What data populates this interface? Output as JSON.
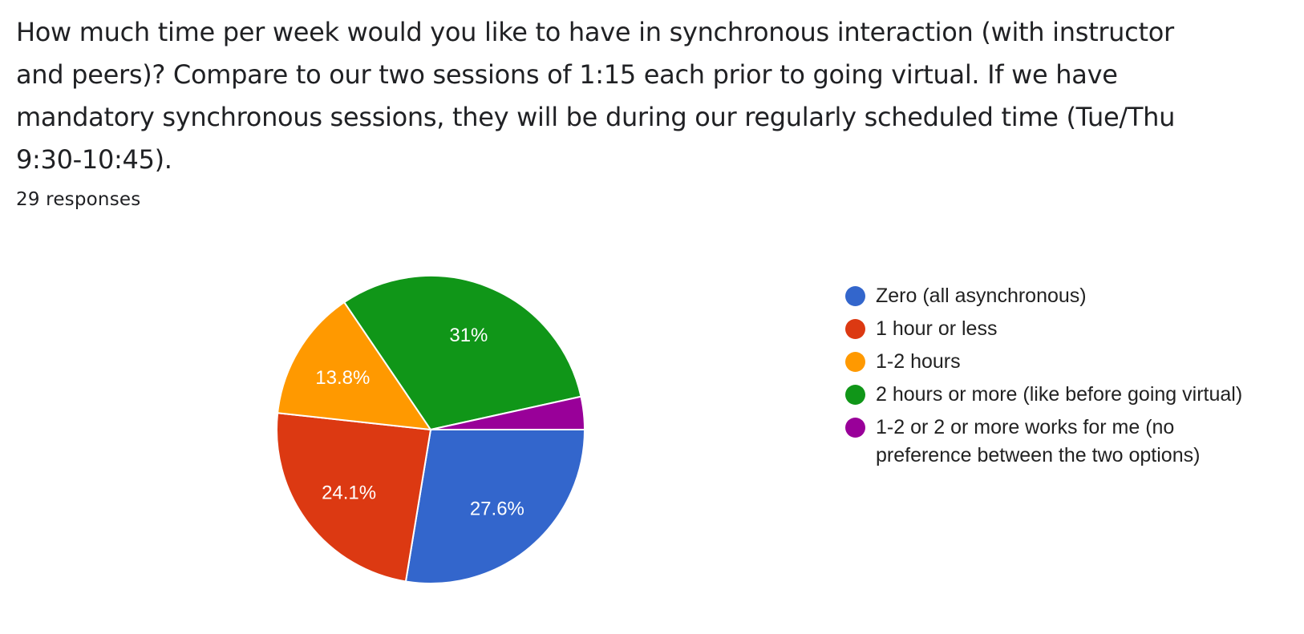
{
  "question": {
    "text": "How much time per week would you like to have in synchronous interaction (with instructor and peers)? Compare to our two sessions of 1:15 each prior to going virtual. If we have mandatory synchronous sessions, they will be during our regularly scheduled time (Tue/Thu 9:30-10:45).",
    "responses": "29 responses"
  },
  "chart_data": {
    "type": "pie",
    "total": 29,
    "categories": [
      "Zero (all asynchronous)",
      "1 hour or less",
      "1-2 hours",
      "2 hours or more (like before going virtual)",
      "1-2 or 2 or more works for me (no preference between the two options)"
    ],
    "values": [
      8,
      7,
      4,
      9,
      1
    ],
    "percent_labels": [
      "27.6%",
      "24.1%",
      "13.8%",
      "31%",
      ""
    ],
    "colors": [
      "#3366cc",
      "#dc3912",
      "#ff9900",
      "#109618",
      "#990099"
    ],
    "start_angle": "3 o'clock",
    "direction": "clockwise",
    "legend_position": "right"
  }
}
